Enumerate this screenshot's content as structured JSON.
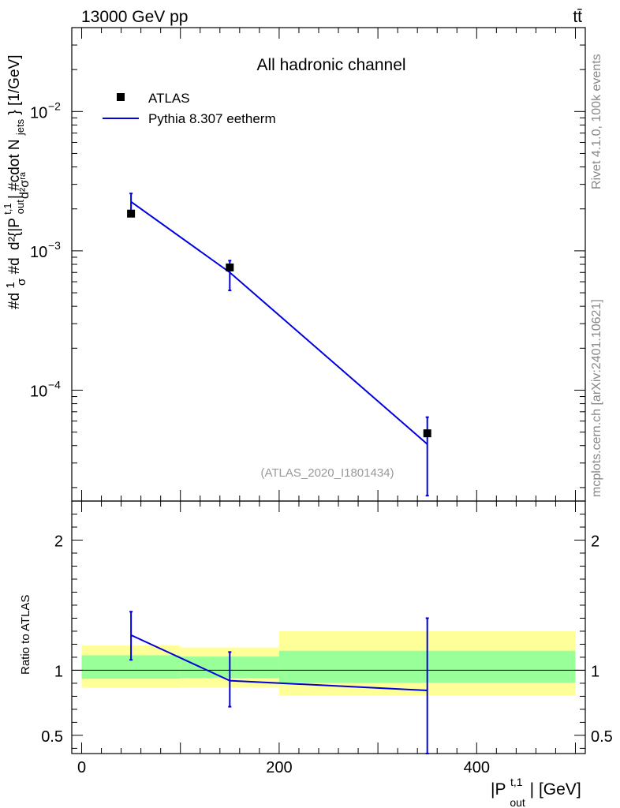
{
  "header": {
    "left": "13000 GeV pp",
    "right": "tt̄"
  },
  "side_text": {
    "rivet": "Rivet 4.1.0,  100k events",
    "mcplots": "mcplots.cern.ch [arXiv:2401.10621]"
  },
  "colors": {
    "data": "#000000",
    "mc": "#0000dd",
    "band_inner": "#99ff99",
    "band_outer": "#ffff99",
    "frame": "#000000",
    "watermark": "#999999"
  },
  "chart_data": [
    {
      "id": "main",
      "type": "scatter",
      "title": "All hadronic channel",
      "ylabel": "#d₁/σ#d d²σ^{id} / d²{|P_out^{t,1}| #cdot N_jets} [1/GeV]",
      "ylabel_parts": {
        "numerator": "d²σʳᵃ",
        "left": "#d",
        "frac_top": "1",
        "frac_bottom": "σ",
        "after": "#d",
        "denominator": "d²{|P",
        "denominator_sub": "out",
        "denominator_sup": "t,1",
        "denominator_rest": "| #cdot N",
        "denominator_sub2": "jets",
        "units": "} [1/GeV]"
      },
      "yscale": "log",
      "ylim": [
        1.6e-05,
        0.04
      ],
      "xlim": [
        -10,
        510
      ],
      "y_ticks": [
        {
          "value": 0.01,
          "label": "10",
          "exp": "−2"
        },
        {
          "value": 0.001,
          "label": "10",
          "exp": "−3"
        },
        {
          "value": 0.0001,
          "label": "10",
          "exp": "−4"
        }
      ],
      "watermark": "(ATLAS_2020_I1801434)",
      "legend": [
        {
          "name": "ATLAS",
          "kind": "marker"
        },
        {
          "name": "Pythia 8.307 eetherm",
          "kind": "line"
        }
      ],
      "series": [
        {
          "name": "ATLAS",
          "x": [
            50,
            150,
            350
          ],
          "y": [
            0.00185,
            0.00076,
            4.9e-05
          ]
        },
        {
          "name": "Pythia 8.307 eetherm",
          "x": [
            50,
            150,
            350
          ],
          "y": [
            0.00225,
            0.0007,
            4.1e-05
          ],
          "err_low": [
            0.00185,
            0.00052,
            1.75e-05
          ],
          "err_high": [
            0.00258,
            0.00085,
            6.4e-05
          ]
        }
      ]
    },
    {
      "id": "ratio",
      "type": "line",
      "ylabel": "Ratio to ATLAS",
      "ylim": [
        0.36,
        2.3
      ],
      "xlim": [
        -10,
        510
      ],
      "xlabel": "|P",
      "xlabel_sub": "out",
      "xlabel_sup": "t,1",
      "xlabel_units": "| [GeV]",
      "y_ticks": [
        {
          "value": 0.5,
          "label": "0.5"
        },
        {
          "value": 1,
          "label": "1"
        },
        {
          "value": 2,
          "label": "2"
        }
      ],
      "x_ticks": [
        {
          "value": 0,
          "label": "0"
        },
        {
          "value": 200,
          "label": "200"
        },
        {
          "value": 400,
          "label": "400"
        }
      ],
      "bands": [
        {
          "x0": 0,
          "x1": 100,
          "inner": [
            0.935,
            1.115
          ],
          "outer": [
            0.865,
            1.19
          ]
        },
        {
          "x0": 100,
          "x1": 200,
          "inner": [
            0.94,
            1.105
          ],
          "outer": [
            0.87,
            1.175
          ]
        },
        {
          "x0": 200,
          "x1": 500,
          "inner": [
            0.905,
            1.15
          ],
          "outer": [
            0.805,
            1.3
          ]
        }
      ],
      "series": [
        {
          "name": "Pythia 8.307 eetherm",
          "x": [
            50,
            150,
            350
          ],
          "y": [
            1.27,
            0.92,
            0.845
          ],
          "err_low": [
            1.08,
            0.72,
            0.36
          ],
          "err_high": [
            1.45,
            1.14,
            1.4
          ]
        }
      ]
    }
  ]
}
